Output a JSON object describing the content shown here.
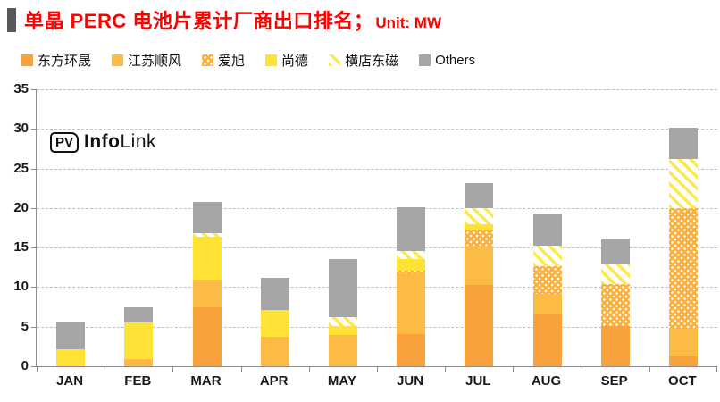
{
  "header": {
    "title": "单晶 PERC 电池片累计厂商出口排名；",
    "unit_label": "Unit: MW",
    "title_color": "#ff0000",
    "marker_color": "#595959"
  },
  "logo": {
    "badge": "PV",
    "name_bold": "Info",
    "name_light": "Link"
  },
  "chart_data": {
    "type": "bar",
    "stacked": true,
    "grid": "horizontal dashed",
    "legend_position": "top",
    "ylim": [
      0,
      35
    ],
    "ytick_step": 5,
    "categories": [
      "JAN",
      "FEB",
      "MAR",
      "APR",
      "MAY",
      "JUN",
      "JUL",
      "AUG",
      "SEP",
      "OCT"
    ],
    "series": [
      {
        "name": "东方环晟",
        "style": "solid",
        "color": "#F9A23B",
        "values": [
          0,
          0,
          7.4,
          0,
          0,
          4.1,
          10.3,
          6.6,
          5.1,
          1.3
        ]
      },
      {
        "name": "江苏顺风",
        "style": "solid",
        "color": "#FCBB45",
        "values": [
          0,
          0.9,
          3.6,
          3.7,
          4.0,
          7.6,
          5.0,
          2.5,
          0,
          3.4
        ]
      },
      {
        "name": "爱旭",
        "style": "dots",
        "color": "#FBB040",
        "values": [
          0,
          0,
          0,
          0,
          0,
          0.4,
          2.0,
          3.6,
          5.3,
          15.3
        ]
      },
      {
        "name": "尚德",
        "style": "solid",
        "color": "#FFE234",
        "values": [
          2.2,
          4.6,
          5.4,
          3.4,
          1.1,
          1.5,
          0.7,
          0,
          0,
          0
        ]
      },
      {
        "name": "横店东磁",
        "style": "hatch",
        "color": "#FFE94A",
        "values": [
          0,
          0,
          0.4,
          0,
          1.1,
          1.0,
          2.0,
          2.6,
          2.5,
          6.2
        ]
      },
      {
        "name": "Others",
        "style": "solid",
        "color": "#A6A6A6",
        "values": [
          3.4,
          2.0,
          4.0,
          4.1,
          7.4,
          5.5,
          3.1,
          4.0,
          3.3,
          4.0
        ]
      }
    ]
  }
}
